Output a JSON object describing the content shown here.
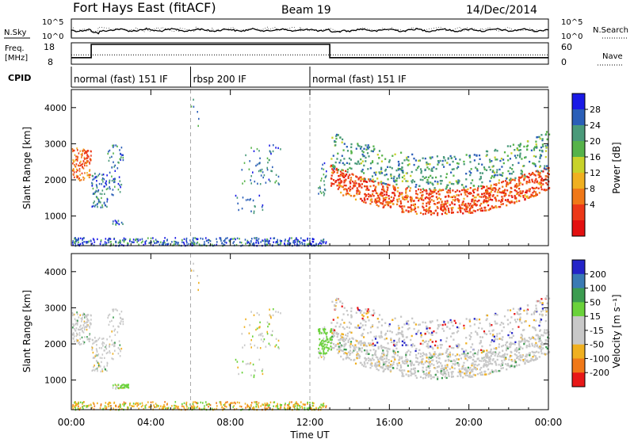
{
  "header": {
    "title": "Fort Hays East (fitACF)",
    "beam": "Beam 19",
    "date": "14/Dec/2014"
  },
  "noise_panel": {
    "left_label": "N.Sky",
    "left_ticks": [
      "10^5",
      "10^0"
    ],
    "right_ticks": [
      "10^5",
      "10^0"
    ],
    "right_label": "N.Search"
  },
  "freq_panel": {
    "left_label_line1": "Freq.",
    "left_label_line2": "[MHz]",
    "left_ticks": [
      "18",
      "8"
    ],
    "right_ticks": [
      "60",
      "0"
    ],
    "right_label": "Nave",
    "freq_series": [
      [
        0.0,
        11.0
      ],
      [
        1.0,
        11.0
      ],
      [
        1.0,
        18.0
      ],
      [
        13.0,
        18.0
      ],
      [
        13.0,
        11.0
      ],
      [
        24.0,
        11.0
      ]
    ],
    "nave_level_fraction": 0.45
  },
  "cpid": {
    "label": "CPID",
    "segments": [
      {
        "start_h": 0.0,
        "end_h": 6.0,
        "label": "normal (fast) 151 IF"
      },
      {
        "start_h": 6.0,
        "end_h": 12.0,
        "label": "rbsp 200 IF"
      },
      {
        "start_h": 12.0,
        "end_h": 24.0,
        "label": "normal (fast) 151 IF"
      }
    ]
  },
  "chart_data": [
    {
      "type": "heatmap",
      "name": "power",
      "ylabel": "Slant Range [km]",
      "yticks": [
        "1000",
        "2000",
        "3000",
        "4000"
      ],
      "ylim": [
        180,
        4500
      ],
      "xlim": [
        0,
        24
      ],
      "colorbar_label": "Power [dB]",
      "colorbar_ticks": [
        "4",
        "8",
        "12",
        "16",
        "20",
        "24",
        "28"
      ],
      "colorbar_colors": [
        "#1a1ae6",
        "#2b5fb8",
        "#4a9a7a",
        "#56b34a",
        "#c8d22a",
        "#f0b020",
        "#f07818",
        "#ec3818",
        "#e31010"
      ]
    },
    {
      "type": "heatmap",
      "name": "velocity",
      "ylabel": "Slant Range [km]",
      "yticks": [
        "1000",
        "2000",
        "3000",
        "4000"
      ],
      "ylim": [
        180,
        4500
      ],
      "xlim": [
        0,
        24
      ],
      "colorbar_label": "Velocity [m s⁻¹]",
      "colorbar_ticks": [
        "200",
        "100",
        "50",
        "15",
        "-15",
        "-50",
        "-100",
        "-200"
      ],
      "colorbar_colors": [
        "#2424c8",
        "#3a7ab4",
        "#3c9c50",
        "#6ad23a",
        "#c8c8c8",
        "#c8c8c8",
        "#f0b020",
        "#f07818",
        "#e81818"
      ]
    }
  ],
  "xaxis": {
    "ticks": [
      "00:00",
      "04:00",
      "08:00",
      "12:00",
      "16:00",
      "20:00",
      "00:00"
    ],
    "label": "Time UT"
  }
}
